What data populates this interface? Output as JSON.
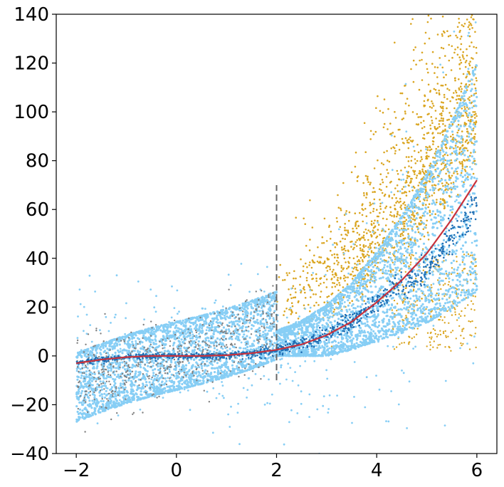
{
  "chart_data": {
    "type": "scatter",
    "title": "",
    "xlabel": "",
    "ylabel": "",
    "xlim": [
      -2.4,
      6.4
    ],
    "ylim": [
      -40,
      140
    ],
    "grid": false,
    "x_ticks": [
      {
        "value": -2,
        "label": "−2"
      },
      {
        "value": 0,
        "label": "0"
      },
      {
        "value": 2,
        "label": "2"
      },
      {
        "value": 4,
        "label": "4"
      },
      {
        "value": 6,
        "label": "6"
      }
    ],
    "y_ticks": [
      {
        "value": -40,
        "label": "−40"
      },
      {
        "value": -20,
        "label": "−20"
      },
      {
        "value": 0,
        "label": "0"
      },
      {
        "value": 20,
        "label": "20"
      },
      {
        "value": 40,
        "label": "40"
      },
      {
        "value": 60,
        "label": "60"
      },
      {
        "value": 80,
        "label": "80"
      },
      {
        "value": 100,
        "label": "100"
      },
      {
        "value": 120,
        "label": "120"
      },
      {
        "value": 140,
        "label": "140"
      }
    ],
    "colors": {
      "light_blue_points": "#87CEF5",
      "gold_points": "#DAA520",
      "gray_points": "#808080",
      "dark_blue_points": "#1F6FB5",
      "fit_curve": "#C8323C",
      "threshold_line": "#666666"
    },
    "threshold_line": {
      "x": 2,
      "y_range": [
        -10,
        70
      ],
      "style": "dashed"
    },
    "fit_curve": {
      "x": [
        -2,
        -1.5,
        -1,
        -0.5,
        0,
        0.5,
        1,
        1.5,
        2,
        2.5,
        3,
        3.5,
        4,
        4.5,
        5,
        5.5,
        6
      ],
      "y": [
        -3,
        -1.5,
        -0.5,
        0,
        0,
        0,
        0.3,
        1.1,
        2.5,
        4.7,
        8.5,
        14,
        22,
        31,
        42,
        56,
        72
      ]
    },
    "series": [
      {
        "color_key": "light_blue_points",
        "x_range": [
          -2,
          6
        ],
        "envelope": "wide scatter around the curve, widening with x; upper ~95 and lower ~0 at x=6"
      },
      {
        "color_key": "gold_points",
        "x_range": [
          2,
          6
        ],
        "envelope": "above the curve, reaching 140 at x≈5.5–6"
      },
      {
        "color_key": "gray_points",
        "x_range": [
          -2,
          2
        ],
        "envelope": "spread from −35 to 28 around a line"
      },
      {
        "color_key": "dark_blue_points",
        "x_range": [
          -2,
          6
        ],
        "envelope": "tight band along the curve, ~52 at x=6"
      }
    ]
  }
}
